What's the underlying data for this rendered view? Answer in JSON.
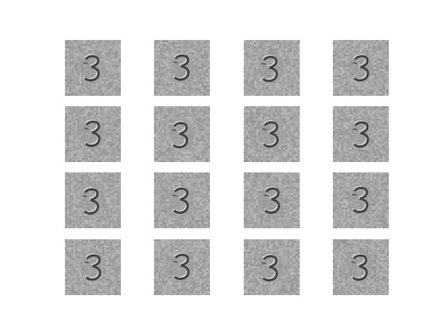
{
  "figure": {
    "background": "#ffffff",
    "grid_rows": 4,
    "grid_cols": 4,
    "tile_count": 16,
    "tile_style": {
      "base_gray": "#a6a6a6",
      "noise_light": "#c4c4c4",
      "noise_dark": "#8a8a8a",
      "stroke_dark": "#2a2a2a",
      "stroke_light": "#e8e8e8"
    },
    "tiles": [
      {
        "digit": "3",
        "variant": 0
      },
      {
        "digit": "3",
        "variant": 1
      },
      {
        "digit": "3",
        "variant": 2
      },
      {
        "digit": "3",
        "variant": 3
      },
      {
        "digit": "3",
        "variant": 1
      },
      {
        "digit": "3",
        "variant": 2
      },
      {
        "digit": "3",
        "variant": 0
      },
      {
        "digit": "3",
        "variant": 3
      },
      {
        "digit": "3",
        "variant": 2
      },
      {
        "digit": "3",
        "variant": 0
      },
      {
        "digit": "3",
        "variant": 3
      },
      {
        "digit": "3",
        "variant": 1
      },
      {
        "digit": "3",
        "variant": 3
      },
      {
        "digit": "3",
        "variant": 1
      },
      {
        "digit": "3",
        "variant": 2
      },
      {
        "digit": "3",
        "variant": 0
      }
    ]
  }
}
